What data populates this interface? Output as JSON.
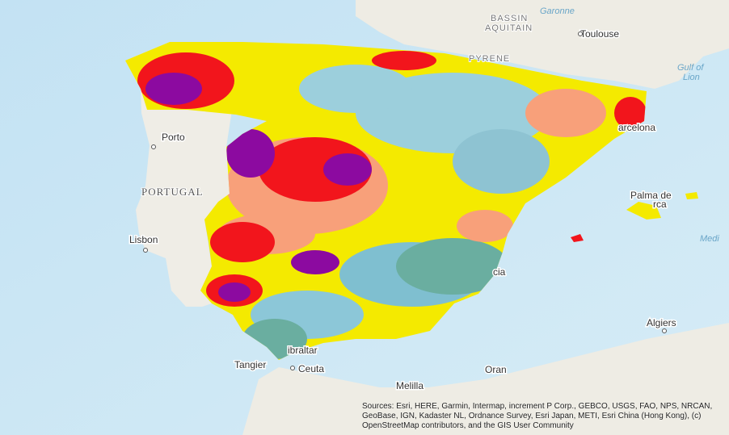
{
  "map": {
    "labels": {
      "bassin": "BASSIN",
      "aquitain": "AQUITAIN",
      "garonne": "Garonne",
      "toulouse": "Toulouse",
      "pyrenees": "PYRENE",
      "gulf_of": "Gulf of",
      "lion": "Lion",
      "barcelona": "arcelona",
      "porto": "Porto",
      "portugal": "PORTUGAL",
      "palma": "Palma de",
      "mallorca": "rca",
      "lisbon": "Lisbon",
      "medi": "Medi",
      "valencia": "cia",
      "algiers": "Algiers",
      "tangier": "Tangier",
      "ceuta": "Ceuta",
      "gibraltar": "ibraltar",
      "oran": "Oran",
      "melilla": "Melilla"
    },
    "attribution": "Sources: Esri, HERE, Garmin, Intermap, increment P Corp., GEBCO, USGS, FAO, NPS, NRCAN, GeoBase, IGN, Kadaster NL, Ordnance Survey, Esri Japan, METI, Esri China (Hong Kong), (c) OpenStreetMap contributors, and the GIS User Community"
  }
}
